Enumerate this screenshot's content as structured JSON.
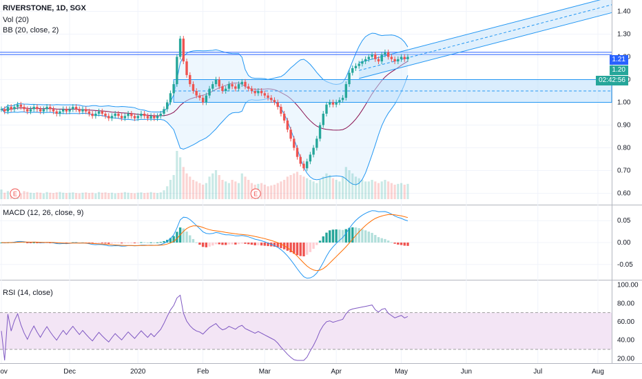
{
  "header": {
    "symbol_line": "RIVERSTONE, 1D, SGX",
    "vol_line": "Vol (20)",
    "bb_line": "BB (20, close, 2)",
    "macd_line": "MACD (12, 26, close, 9)",
    "rsi_line": "RSI (14, close)"
  },
  "badges": {
    "last_price_blue": "1.21",
    "last_price_teal": "1.20",
    "countdown": "02:42:56"
  },
  "earnings_marker": "E",
  "colors": {
    "up": "#26a69a",
    "down": "#ef5350",
    "bb": "#2196f3",
    "bb_fill": "#e3f2fd",
    "basis": "#880e4f",
    "macd": "#2196f3",
    "signal": "#ff6d00",
    "rsi": "#7e57c2",
    "rsi_band": "#f3e5f5",
    "channel": "#2196f3"
  },
  "chart_data": [
    {
      "type": "candlestick",
      "title": "RIVERSTONE, 1D, SGX",
      "ylim": [
        0.55,
        1.45
      ],
      "y_ticks": [
        "1.40",
        "1.30",
        "1.20",
        "1.10",
        "1.00",
        "0.90",
        "0.80",
        "0.70",
        "0.60"
      ],
      "x_ticks": [
        "Nov",
        "Dec",
        "2020",
        "Feb",
        "Mar",
        "Apr",
        "May",
        "Jun",
        "Jul",
        "Aug"
      ],
      "close": [
        0.97,
        0.96,
        0.98,
        0.97,
        0.98,
        0.99,
        0.98,
        0.97,
        0.96,
        0.97,
        0.98,
        0.97,
        0.96,
        0.97,
        0.98,
        0.97,
        0.96,
        0.95,
        0.96,
        0.97,
        0.96,
        0.97,
        0.98,
        0.97,
        0.96,
        0.97,
        0.96,
        0.95,
        0.94,
        0.95,
        0.96,
        0.95,
        0.94,
        0.93,
        0.94,
        0.95,
        0.94,
        0.93,
        0.94,
        0.95,
        0.94,
        0.93,
        0.94,
        0.95,
        0.94,
        0.93,
        0.94,
        0.93,
        0.94,
        0.95,
        0.97,
        1.0,
        1.04,
        1.08,
        1.2,
        1.28,
        1.18,
        1.12,
        1.08,
        1.05,
        1.03,
        1.02,
        1.0,
        1.03,
        1.06,
        1.08,
        1.1,
        1.07,
        1.05,
        1.06,
        1.08,
        1.07,
        1.06,
        1.08,
        1.09,
        1.07,
        1.06,
        1.05,
        1.04,
        1.05,
        1.04,
        1.03,
        1.02,
        1.01,
        1.0,
        0.98,
        0.95,
        0.92,
        0.88,
        0.84,
        0.8,
        0.76,
        0.73,
        0.71,
        0.74,
        0.77,
        0.8,
        0.84,
        0.9,
        0.95,
        0.99,
        1.0,
        0.99,
        1.0,
        1.01,
        1.02,
        1.08,
        1.13,
        1.15,
        1.16,
        1.17,
        1.18,
        1.19,
        1.2,
        1.21,
        1.19,
        1.18,
        1.21,
        1.22,
        1.2,
        1.19,
        1.18,
        1.19,
        1.2,
        1.19,
        1.2
      ],
      "volume": [
        60,
        40,
        50,
        45,
        55,
        40,
        35,
        50,
        45,
        40,
        38,
        42,
        40,
        36,
        44,
        40,
        38,
        42,
        45,
        40,
        38,
        40,
        42,
        38,
        36,
        40,
        42,
        38,
        40,
        36,
        44,
        40,
        42,
        38,
        40,
        36,
        38,
        40,
        44,
        40,
        38,
        36,
        40,
        42,
        38,
        40,
        44,
        40,
        38,
        42,
        55,
        80,
        120,
        150,
        300,
        260,
        200,
        160,
        140,
        120,
        110,
        100,
        90,
        100,
        140,
        160,
        180,
        150,
        120,
        110,
        100,
        120,
        110,
        100,
        160,
        140,
        120,
        100,
        90,
        95,
        100,
        90,
        80,
        85,
        90,
        100,
        110,
        120,
        140,
        150,
        160,
        170,
        150,
        140,
        130,
        120,
        110,
        100,
        120,
        140,
        160,
        150,
        130,
        120,
        110,
        140,
        200,
        180,
        160,
        140,
        130,
        120,
        110,
        110,
        120,
        110,
        100,
        110,
        120,
        110,
        100,
        90,
        95,
        100,
        90,
        95
      ],
      "channel": {
        "start_index": 110,
        "start_mid": 1.14,
        "slope_per_bar": 0.0024,
        "half_width": 0.035
      },
      "horizontal_levels": [
        1.21,
        1.22
      ],
      "box": {
        "from_index": 53,
        "top": 1.1,
        "mid": 1.05,
        "bottom": 1.0
      }
    },
    {
      "type": "line",
      "title": "MACD (12, 26, close, 9)",
      "ylim": [
        -0.085,
        0.085
      ],
      "y_ticks": [
        "0.05",
        "0.00",
        "-0.05"
      ],
      "series": [
        {
          "name": "MACD"
        },
        {
          "name": "Signal"
        },
        {
          "name": "Histogram"
        }
      ]
    },
    {
      "type": "line",
      "title": "RSI (14, close)",
      "ylim": [
        15,
        105
      ],
      "y_ticks": [
        "100.00",
        "80.00",
        "60.00",
        "40.00",
        "20.00"
      ],
      "band": [
        30,
        70
      ]
    }
  ]
}
